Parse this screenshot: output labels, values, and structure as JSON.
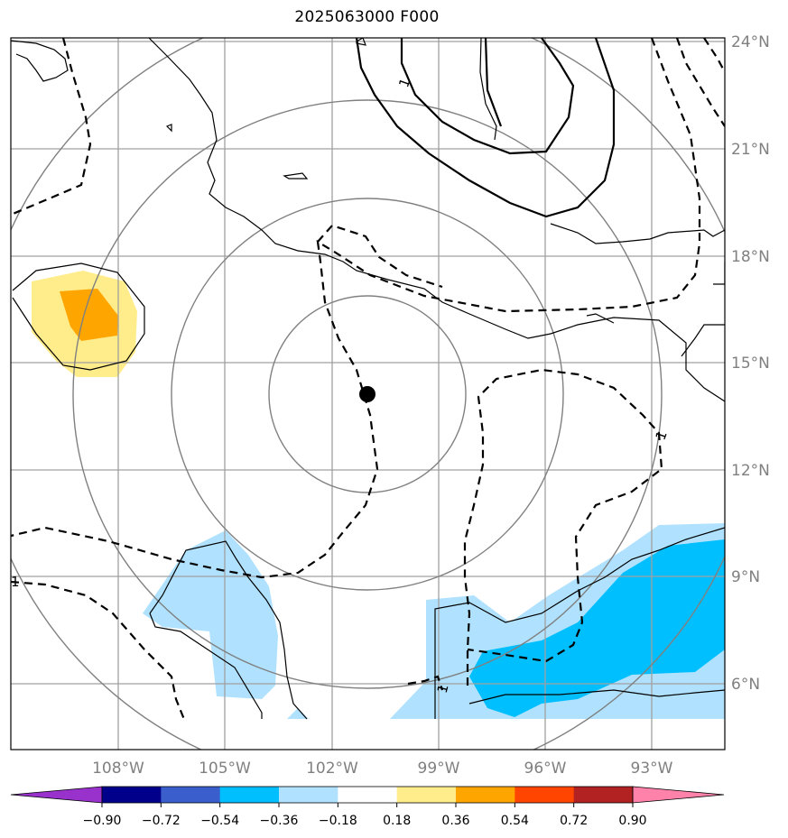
{
  "title": "2025063000 F000",
  "map": {
    "lat_labels": [
      "24°N",
      "21°N",
      "18°N",
      "15°N",
      "12°N",
      "9°N",
      "6°N"
    ],
    "lon_labels": [
      "108°W",
      "105°W",
      "102°W",
      "99°W",
      "96°W",
      "93°W"
    ],
    "contour_labels": [
      "1",
      "1",
      "1",
      "1"
    ],
    "center_marker": "storm-center",
    "colors": {
      "grid": "#a0a0a0",
      "range_rings": "#808080",
      "coastline": "#000000",
      "contour": "#000000",
      "pos_light": "#ffec8b",
      "pos_mid": "#ffa500",
      "neg_light": "#b0e2ff",
      "neg_mid": "#00bfff"
    }
  },
  "colorbar": {
    "tick_labels": [
      "−0.90",
      "−0.72",
      "−0.54",
      "−0.36",
      "−0.18",
      "0.18",
      "0.36",
      "0.54",
      "0.72",
      "0.90"
    ],
    "colors": [
      "#9932cc",
      "#00008b",
      "#3a5fcd",
      "#00bfff",
      "#b0e2ff",
      "#ffffff",
      "#ffec8b",
      "#ffa500",
      "#ff4500",
      "#b22222",
      "#ff82ab"
    ]
  }
}
